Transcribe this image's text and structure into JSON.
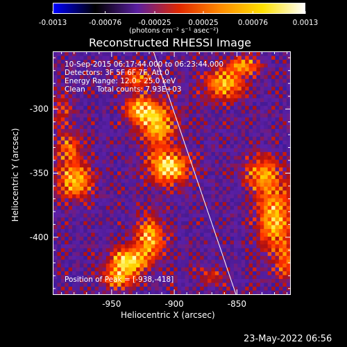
{
  "chart_data": {
    "type": "heatmap",
    "title": "Reconstructed RHESSI Image",
    "xlabel": "Heliocentric X (arcsec)",
    "ylabel": "Heliocentric Y (arcsec)",
    "xlim": [
      -997,
      -807
    ],
    "ylim": [
      -445,
      -255
    ],
    "x_ticks": [
      "-950",
      "-900",
      "-850"
    ],
    "x_tick_values": [
      -950,
      -900,
      -850
    ],
    "y_ticks": [
      "-300",
      "-350",
      "-400"
    ],
    "y_tick_values": [
      -300,
      -350,
      -400
    ],
    "colorbar": {
      "ticks": [
        "-0.0013",
        "-0.00076",
        "-0.00025",
        "0.00025",
        "0.00076",
        "0.0013"
      ],
      "tick_values": [
        -0.0013,
        -0.00076,
        -0.00025,
        0.00025,
        0.00076,
        0.0013
      ],
      "range": [
        -0.0013,
        0.0013
      ],
      "units_label": "(photons cm⁻² s⁻¹ asec⁻²)"
    },
    "colors": [
      "#0000ff",
      "#000000",
      "#5a1fa0",
      "#e02800",
      "#ff8c00",
      "#ffe000",
      "#ffffff"
    ],
    "info": {
      "time_range": "10-Sep-2015 06:17:44.000 to 06:23:44.000",
      "detectors": "Detectors: 3F 5F 6F 7F, Att 0",
      "energy": "Energy Range: 12.0 - 25.0 keV",
      "algorithm": "Clean     Total counts: 7.93E+03",
      "peak": "Position of Peak = [-938,-418]"
    },
    "limb_line": {
      "x": [
        -917,
        -851
      ],
      "y": [
        -255,
        -445
      ]
    },
    "sources": [
      {
        "x": -905,
        "y": -345,
        "value": 1.0,
        "sx": 11,
        "sy": 9
      },
      {
        "x": -913,
        "y": -312,
        "value": 0.8,
        "sx": 10,
        "sy": 12
      },
      {
        "x": -928,
        "y": -300,
        "value": 0.75,
        "sx": 8,
        "sy": 8
      },
      {
        "x": -930,
        "y": -275,
        "value": 0.55,
        "sx": 9,
        "sy": 6
      },
      {
        "x": -860,
        "y": -280,
        "value": 0.8,
        "sx": 11,
        "sy": 8
      },
      {
        "x": -845,
        "y": -265,
        "value": 0.65,
        "sx": 9,
        "sy": 5
      },
      {
        "x": -980,
        "y": -355,
        "value": 0.8,
        "sx": 10,
        "sy": 10
      },
      {
        "x": -985,
        "y": -330,
        "value": 0.55,
        "sx": 7,
        "sy": 8
      },
      {
        "x": -920,
        "y": -400,
        "value": 0.8,
        "sx": 8,
        "sy": 12
      },
      {
        "x": -938,
        "y": -418,
        "value": 0.95,
        "sx": 10,
        "sy": 7
      },
      {
        "x": -945,
        "y": -432,
        "value": 0.65,
        "sx": 9,
        "sy": 6
      },
      {
        "x": -820,
        "y": -385,
        "value": 0.85,
        "sx": 10,
        "sy": 18
      },
      {
        "x": -830,
        "y": -350,
        "value": 0.65,
        "sx": 10,
        "sy": 10
      },
      {
        "x": -810,
        "y": -420,
        "value": 0.45,
        "sx": 7,
        "sy": 10
      },
      {
        "x": -990,
        "y": -300,
        "value": 0.35,
        "sx": 6,
        "sy": 10
      },
      {
        "x": -870,
        "y": -430,
        "value": 0.35,
        "sx": 8,
        "sy": 5
      }
    ]
  },
  "footer": {
    "date": "23-May-2022 06:56"
  }
}
